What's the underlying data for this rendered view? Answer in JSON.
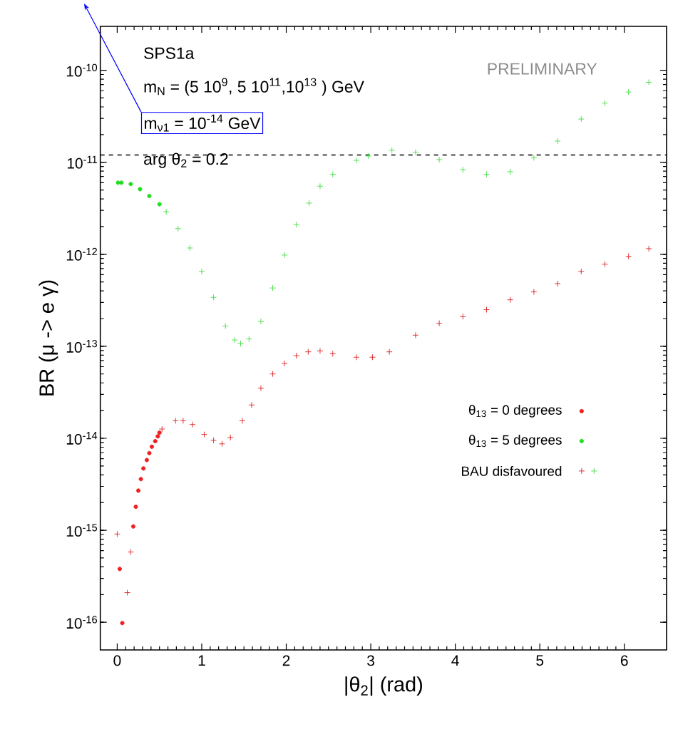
{
  "chart_data": {
    "type": "scatter",
    "xlabel": "|θ$_{2}$|  (rad)",
    "ylabel": "BR (μ -> e γ)",
    "xlim": [
      -0.2,
      6.5
    ],
    "ylim": [
      5e-17,
      3e-10
    ],
    "log": "y",
    "xticks": [
      0,
      1,
      2,
      3,
      4,
      5,
      6
    ],
    "yticks": [
      {
        "value": 1e-16,
        "label": "10$^{-16}$"
      },
      {
        "value": 1e-15,
        "label": "10$^{-15}$"
      },
      {
        "value": 1e-14,
        "label": "10$^{-14}$"
      },
      {
        "value": 1e-13,
        "label": "10$^{-13}$"
      },
      {
        "value": 1e-12,
        "label": "10$^{-12}$"
      },
      {
        "value": 1e-11,
        "label": "10$^{-11}$"
      },
      {
        "value": 1e-10,
        "label": "10$^{-10}$"
      }
    ],
    "legend": "bottom right",
    "ref_lines": [
      {
        "axis": "y",
        "value": 1.2e-11,
        "color": "#000000",
        "line_style": "dashed"
      }
    ],
    "annotations": [
      "SPS1a",
      "m$_{N}$ = (5 10$^{9}$, 5 10$^{11}$,10$^{13}$ ) GeV",
      "m$_{ν1}$ = 10$^{-14}$ GeV",
      "arg θ$_{2}$ = 0.2",
      "PRELIMINARY"
    ],
    "series": [
      {
        "name": "θ$_{13}$ = 0 degrees",
        "color": "#ee2020",
        "marker": "circle",
        "x": [
          0.03,
          0.06,
          0.19,
          0.22,
          0.25,
          0.28,
          0.31,
          0.35,
          0.38,
          0.41,
          0.45,
          0.48,
          0.5
        ],
        "values": [
          3.8e-16,
          9.8e-17,
          1.1e-15,
          1.8e-15,
          2.7e-15,
          3.6e-15,
          4.7e-15,
          5.8e-15,
          6.9e-15,
          8.1e-15,
          9.3e-15,
          1.05e-14,
          1.15e-14
        ]
      },
      {
        "name": "θ$_{13}$ = 5 degrees",
        "color": "#22dd22",
        "marker": "circle",
        "x": [
          0.01,
          0.05,
          0.16,
          0.27,
          0.38,
          0.5
        ],
        "values": [
          6e-12,
          6e-12,
          5.8e-12,
          5.1e-12,
          4.3e-12,
          3.5e-12
        ]
      },
      {
        "name": "BAU disfavoured",
        "color": "#dd2020",
        "marker": "cross",
        "x": [
          0.0,
          0.12,
          0.16,
          0.53,
          0.69,
          0.78,
          0.89,
          1.03,
          1.14,
          1.24,
          1.34,
          1.48,
          1.59,
          1.7,
          1.84,
          1.98,
          2.12,
          2.26,
          2.4,
          2.55,
          2.83,
          3.02,
          3.22,
          3.53,
          3.81,
          4.09,
          4.37,
          4.65,
          4.93,
          5.21,
          5.49,
          5.77,
          6.05,
          6.29
        ],
        "values": [
          9.1e-16,
          2.1e-16,
          5.8e-16,
          1.26e-14,
          1.55e-14,
          1.55e-14,
          1.41e-14,
          1.1e-14,
          9.5e-15,
          8.7e-15,
          1.02e-14,
          1.55e-14,
          2.3e-14,
          3.5e-14,
          5e-14,
          6.5e-14,
          7.9e-14,
          8.7e-14,
          8.9e-14,
          8.3e-14,
          7.6e-14,
          7.6e-14,
          8.7e-14,
          1.32e-13,
          1.78e-13,
          2.1e-13,
          2.5e-13,
          3.2e-13,
          3.9e-13,
          4.8e-13,
          6.5e-13,
          7.8e-13,
          9.5e-13,
          1.15e-12
        ]
      },
      {
        "color": "#44dd44",
        "marker": "cross",
        "x": [
          0.58,
          0.72,
          0.86,
          1.0,
          1.14,
          1.28,
          1.39,
          1.46,
          1.56,
          1.7,
          1.84,
          1.98,
          2.12,
          2.27,
          2.4,
          2.55,
          2.83,
          2.97,
          3.25,
          3.53,
          3.81,
          4.09,
          4.37,
          4.65,
          4.93,
          5.21,
          5.49,
          5.77,
          6.05,
          6.29
        ],
        "values": [
          2.9e-12,
          1.9e-12,
          1.17e-12,
          6.5e-13,
          3.4e-13,
          1.66e-13,
          1.17e-13,
          1.07e-13,
          1.2e-13,
          1.86e-13,
          4.3e-13,
          9.8e-13,
          2.1e-12,
          3.6e-12,
          5.5e-12,
          7.4e-12,
          1.05e-11,
          1.17e-11,
          1.35e-11,
          1.29e-11,
          1.07e-11,
          8.3e-12,
          7.4e-12,
          7.9e-12,
          1.12e-11,
          1.7e-11,
          2.95e-11,
          4.4e-11,
          5.8e-11,
          7.4e-11
        ]
      }
    ]
  }
}
